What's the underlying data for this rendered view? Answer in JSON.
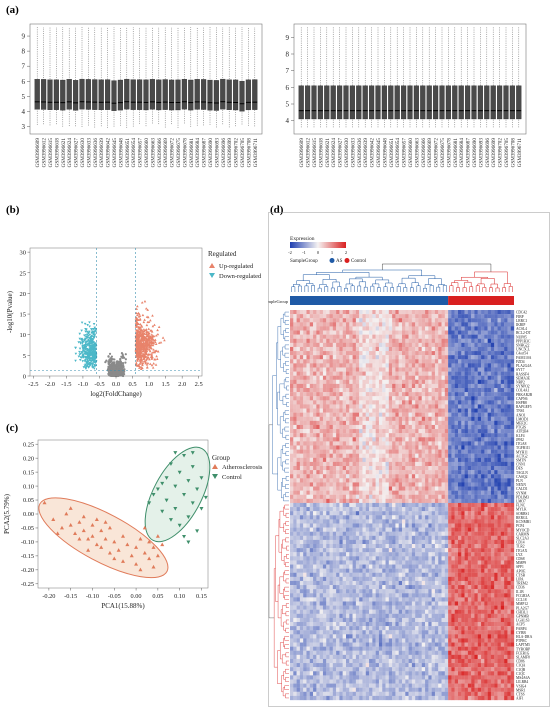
{
  "panels": {
    "a": "(a)",
    "b": "(b)",
    "c": "(c)",
    "d": "(d)"
  },
  "colors": {
    "box_fill": "#4a4a4a",
    "up": "#e8836b",
    "down": "#4cb8c8",
    "nonsig": "#8a8a8a",
    "athero": "#e07b5a",
    "control": "#3f8f6b",
    "ellipse_athero_fill": "#f6dcc8",
    "ellipse_control_fill": "#d8ebe0",
    "heat_high": "#d92020",
    "heat_low": "#1f3fb0",
    "heat_mid": "#f5f2f2",
    "as_bar": "#1f5aa6",
    "control_bar": "#d92020",
    "dendro_as": "#1f5aa6",
    "dendro_control": "#d92020"
  },
  "chart_data": [
    {
      "type": "box",
      "panel": "a-left",
      "yticks": [
        3,
        4,
        5,
        6,
        7,
        8,
        9
      ],
      "ylim": [
        2.5,
        9.8
      ],
      "samples": [
        "GSM3996609",
        "GSM3996612",
        "GSM3996615",
        "GSM3996618",
        "GSM3996621",
        "GSM3996624",
        "GSM3996627",
        "GSM3996630",
        "GSM3996633",
        "GSM3996636",
        "GSM3996639",
        "GSM3996642",
        "GSM3996645",
        "GSM3996648",
        "GSM3996651",
        "GSM3996654",
        "GSM3996657",
        "GSM3996660",
        "GSM3996663",
        "GSM3996666",
        "GSM3996669",
        "GSM3996672",
        "GSM3996675",
        "GSM3996678",
        "GSM3996681",
        "GSM3996684",
        "GSM3996687",
        "GSM3996690",
        "GSM3996693",
        "GSM3996696",
        "GSM3996699",
        "GSM3996702",
        "GSM3996705",
        "GSM3996708",
        "GSM3996711"
      ],
      "q1": 4.1,
      "median": 4.6,
      "q3": 6.1,
      "whisker_low": 2.9,
      "whisker_high": 9.6
    },
    {
      "type": "box",
      "panel": "a-right",
      "yticks": [
        4,
        5,
        6,
        7,
        8,
        9
      ],
      "ylim": [
        3.2,
        9.8
      ],
      "samples": [
        "GSM3996609",
        "GSM3996612",
        "GSM3996615",
        "GSM3996618",
        "GSM3996621",
        "GSM3996624",
        "GSM3996627",
        "GSM3996630",
        "GSM3996633",
        "GSM3996636",
        "GSM3996639",
        "GSM3996642",
        "GSM3996645",
        "GSM3996648",
        "GSM3996651",
        "GSM3996654",
        "GSM3996657",
        "GSM3996660",
        "GSM3996663",
        "GSM3996666",
        "GSM3996669",
        "GSM3996672",
        "GSM3996675",
        "GSM3996678",
        "GSM3996681",
        "GSM3996684",
        "GSM3996687",
        "GSM3996690",
        "GSM3996693",
        "GSM3996696",
        "GSM3996699",
        "GSM3996702",
        "GSM3996705",
        "GSM3996708",
        "GSM3996711"
      ],
      "q1": 4.1,
      "median": 4.6,
      "q3": 6.1,
      "whisker_low": 3.6,
      "whisker_high": 9.6
    },
    {
      "type": "scatter",
      "panel": "b",
      "xlabel": "log2(FoldChange)",
      "ylabel": "-log10(Pvalue)",
      "xticks": [
        -2.5,
        -2.0,
        -1.5,
        -1.0,
        -0.5,
        0.0,
        0.5,
        1.0,
        1.5,
        2.0,
        2.5
      ],
      "yticks": [
        0,
        5,
        10,
        15,
        20,
        25,
        30
      ],
      "xlim": [
        -2.6,
        2.6
      ],
      "ylim": [
        0,
        31
      ],
      "fc_threshold": 0.585,
      "p_threshold": 1.3,
      "legend_title": "Regulated",
      "series": [
        {
          "name": "Up-regulated"
        },
        {
          "name": "Down-regulated"
        }
      ]
    },
    {
      "type": "scatter",
      "panel": "c",
      "xlabel": "PCA1(15.88%)",
      "ylabel": "PCA2(5.79%)",
      "xticks": [
        -0.2,
        -0.15,
        -0.1,
        -0.05,
        0.0,
        0.05,
        0.1,
        0.15
      ],
      "yticks": [
        -0.25,
        -0.2,
        -0.15,
        -0.1,
        -0.05,
        0.0,
        0.05,
        0.1,
        0.15,
        0.2,
        0.25
      ],
      "xlim": [
        -0.225,
        0.165
      ],
      "ylim": [
        -0.265,
        0.265
      ],
      "legend_title": "Group",
      "series": [
        {
          "name": "Atherosclerosis",
          "points": [
            [
              -0.21,
              0.04
            ],
            [
              -0.19,
              -0.02
            ],
            [
              -0.17,
              -0.05
            ],
            [
              -0.16,
              0.0
            ],
            [
              -0.15,
              -0.04
            ],
            [
              -0.15,
              0.02
            ],
            [
              -0.14,
              -0.07
            ],
            [
              -0.13,
              -0.03
            ],
            [
              -0.12,
              -0.06
            ],
            [
              -0.12,
              -0.01
            ],
            [
              -0.11,
              -0.09
            ],
            [
              -0.1,
              -0.04
            ],
            [
              -0.1,
              -0.08
            ],
            [
              -0.09,
              -0.02
            ],
            [
              -0.09,
              -0.11
            ],
            [
              -0.08,
              -0.06
            ],
            [
              -0.08,
              -0.12
            ],
            [
              -0.07,
              -0.09
            ],
            [
              -0.06,
              -0.14
            ],
            [
              -0.06,
              -0.05
            ],
            [
              -0.05,
              -0.1
            ],
            [
              -0.05,
              -0.16
            ],
            [
              -0.04,
              -0.13
            ],
            [
              -0.03,
              -0.08
            ],
            [
              -0.03,
              -0.17
            ],
            [
              -0.02,
              -0.11
            ],
            [
              -0.01,
              -0.15
            ],
            [
              0.0,
              -0.12
            ],
            [
              0.0,
              -0.18
            ],
            [
              0.01,
              -0.09
            ],
            [
              0.02,
              -0.14
            ],
            [
              0.02,
              -0.05
            ],
            [
              0.03,
              -0.1
            ],
            [
              0.03,
              -0.16
            ],
            [
              0.04,
              -0.12
            ],
            [
              0.05,
              -0.08
            ],
            [
              0.05,
              -0.15
            ],
            [
              0.06,
              -0.11
            ],
            [
              -0.11,
              -0.13
            ],
            [
              -0.13,
              -0.09
            ],
            [
              -0.07,
              -0.03
            ],
            [
              0.01,
              -0.2
            ],
            [
              -0.18,
              -0.07
            ],
            [
              0.04,
              -0.19
            ]
          ]
        },
        {
          "name": "Control",
          "points": [
            [
              0.03,
              0.04
            ],
            [
              0.05,
              0.09
            ],
            [
              0.06,
              0.01
            ],
            [
              0.07,
              0.13
            ],
            [
              0.07,
              0.05
            ],
            [
              0.08,
              -0.02
            ],
            [
              0.08,
              0.18
            ],
            [
              0.09,
              0.1
            ],
            [
              0.09,
              0.02
            ],
            [
              0.1,
              0.15
            ],
            [
              0.1,
              -0.04
            ],
            [
              0.11,
              0.07
            ],
            [
              0.11,
              0.21
            ],
            [
              0.12,
              0.12
            ],
            [
              0.12,
              -0.01
            ],
            [
              0.13,
              0.04
            ],
            [
              0.13,
              0.17
            ],
            [
              0.14,
              0.09
            ],
            [
              0.14,
              -0.06
            ],
            [
              0.15,
              0.13
            ],
            [
              0.15,
              0.02
            ],
            [
              0.11,
              -0.08
            ],
            [
              0.06,
              0.11
            ],
            [
              0.13,
              0.22
            ],
            [
              0.09,
              0.22
            ],
            [
              0.16,
              0.06
            ],
            [
              0.04,
              0.07
            ],
            [
              0.12,
              -0.1
            ]
          ]
        }
      ]
    },
    {
      "type": "heatmap",
      "panel": "d",
      "legend_title": "Expression",
      "color_ticks": [
        "-2",
        "-1",
        "0",
        "1",
        "2"
      ],
      "sample_group_label": "SampleGroup",
      "sample_group_row_label": "SampleGroup",
      "groups": [
        {
          "name": "AS"
        },
        {
          "name": "Control"
        }
      ],
      "genes": [
        "CDC42",
        "FIBP",
        "LRRC1",
        "IKBIP",
        "ACSL4",
        "BCL2-DT",
        "NUP85",
        "PPP1R3C",
        "SNHG22",
        "UNC5CL",
        "C4orf54",
        "FAM110A",
        "FZD4",
        "PLA2G4A",
        "SYT7",
        "RASSF4",
        "SEMA3E",
        "NRP2",
        "SYNPO2",
        "COL4A1",
        "PRKAR2B",
        "CAPN6",
        "HSPB8",
        "RAPGEF5",
        "TNS1",
        "ANO1",
        "LMOD1",
        "MEF2C",
        "PTGIS",
        "ATP2B4",
        "KLF4",
        "JPH2",
        "ITGA8",
        "TGFB1I1",
        "MYH11",
        "ACTG2",
        "SMTN",
        "CNN1",
        "DES",
        "TAGLN",
        "CASQ2",
        "PLN",
        "NEXN",
        "CALD1",
        "SYNM",
        "PDLIM3",
        "LMO7",
        "FLNC",
        "MYLK",
        "SORBS1",
        "RERGL",
        "KCNMB1",
        "PCP4",
        "MYOCD",
        "CARMN",
        "SLC2A3",
        "CD14",
        "TLR2",
        "ITGAX",
        "LYZ",
        "CD68",
        "MMP9",
        "SPP1",
        "APOE",
        "CTSB",
        "LIPA",
        "TREM2",
        "CD36",
        "IL1B",
        "FCGR3A",
        "CCL18",
        "MMP12",
        "PLA2G7",
        "CHI3L1",
        "GPNMB",
        "LGALS3",
        "ACP5",
        "FABP4",
        "CYBB",
        "HLA-DRA",
        "PTPRC",
        "LAPTM5",
        "TYROBP",
        "FCER1G",
        "SLAMF8",
        "CD86",
        "C1QA",
        "C1QB",
        "C1QC",
        "MS4A6A",
        "LILRB4",
        "VSIG4",
        "MSR1",
        "CTSS",
        "AIF1"
      ]
    }
  ]
}
